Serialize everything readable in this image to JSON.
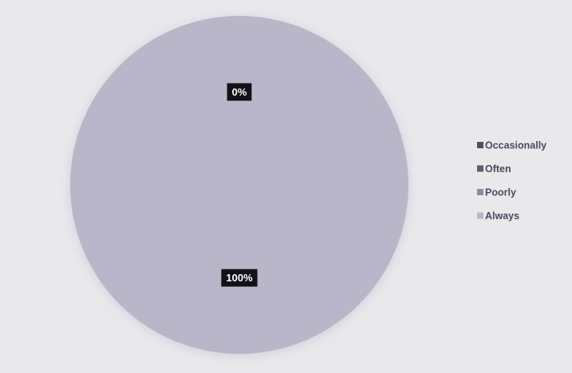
{
  "chart_data": {
    "type": "pie",
    "categories": [
      "Occasionally",
      "Often",
      "Poorly",
      "Always"
    ],
    "values": [
      0,
      0,
      0,
      100
    ],
    "value_labels": [
      null,
      null,
      "0%",
      "100%"
    ],
    "colors": [
      "#4b5068",
      "#5c5c72",
      "#8d8c9e",
      "#b8b6c8"
    ],
    "legend": "right"
  }
}
